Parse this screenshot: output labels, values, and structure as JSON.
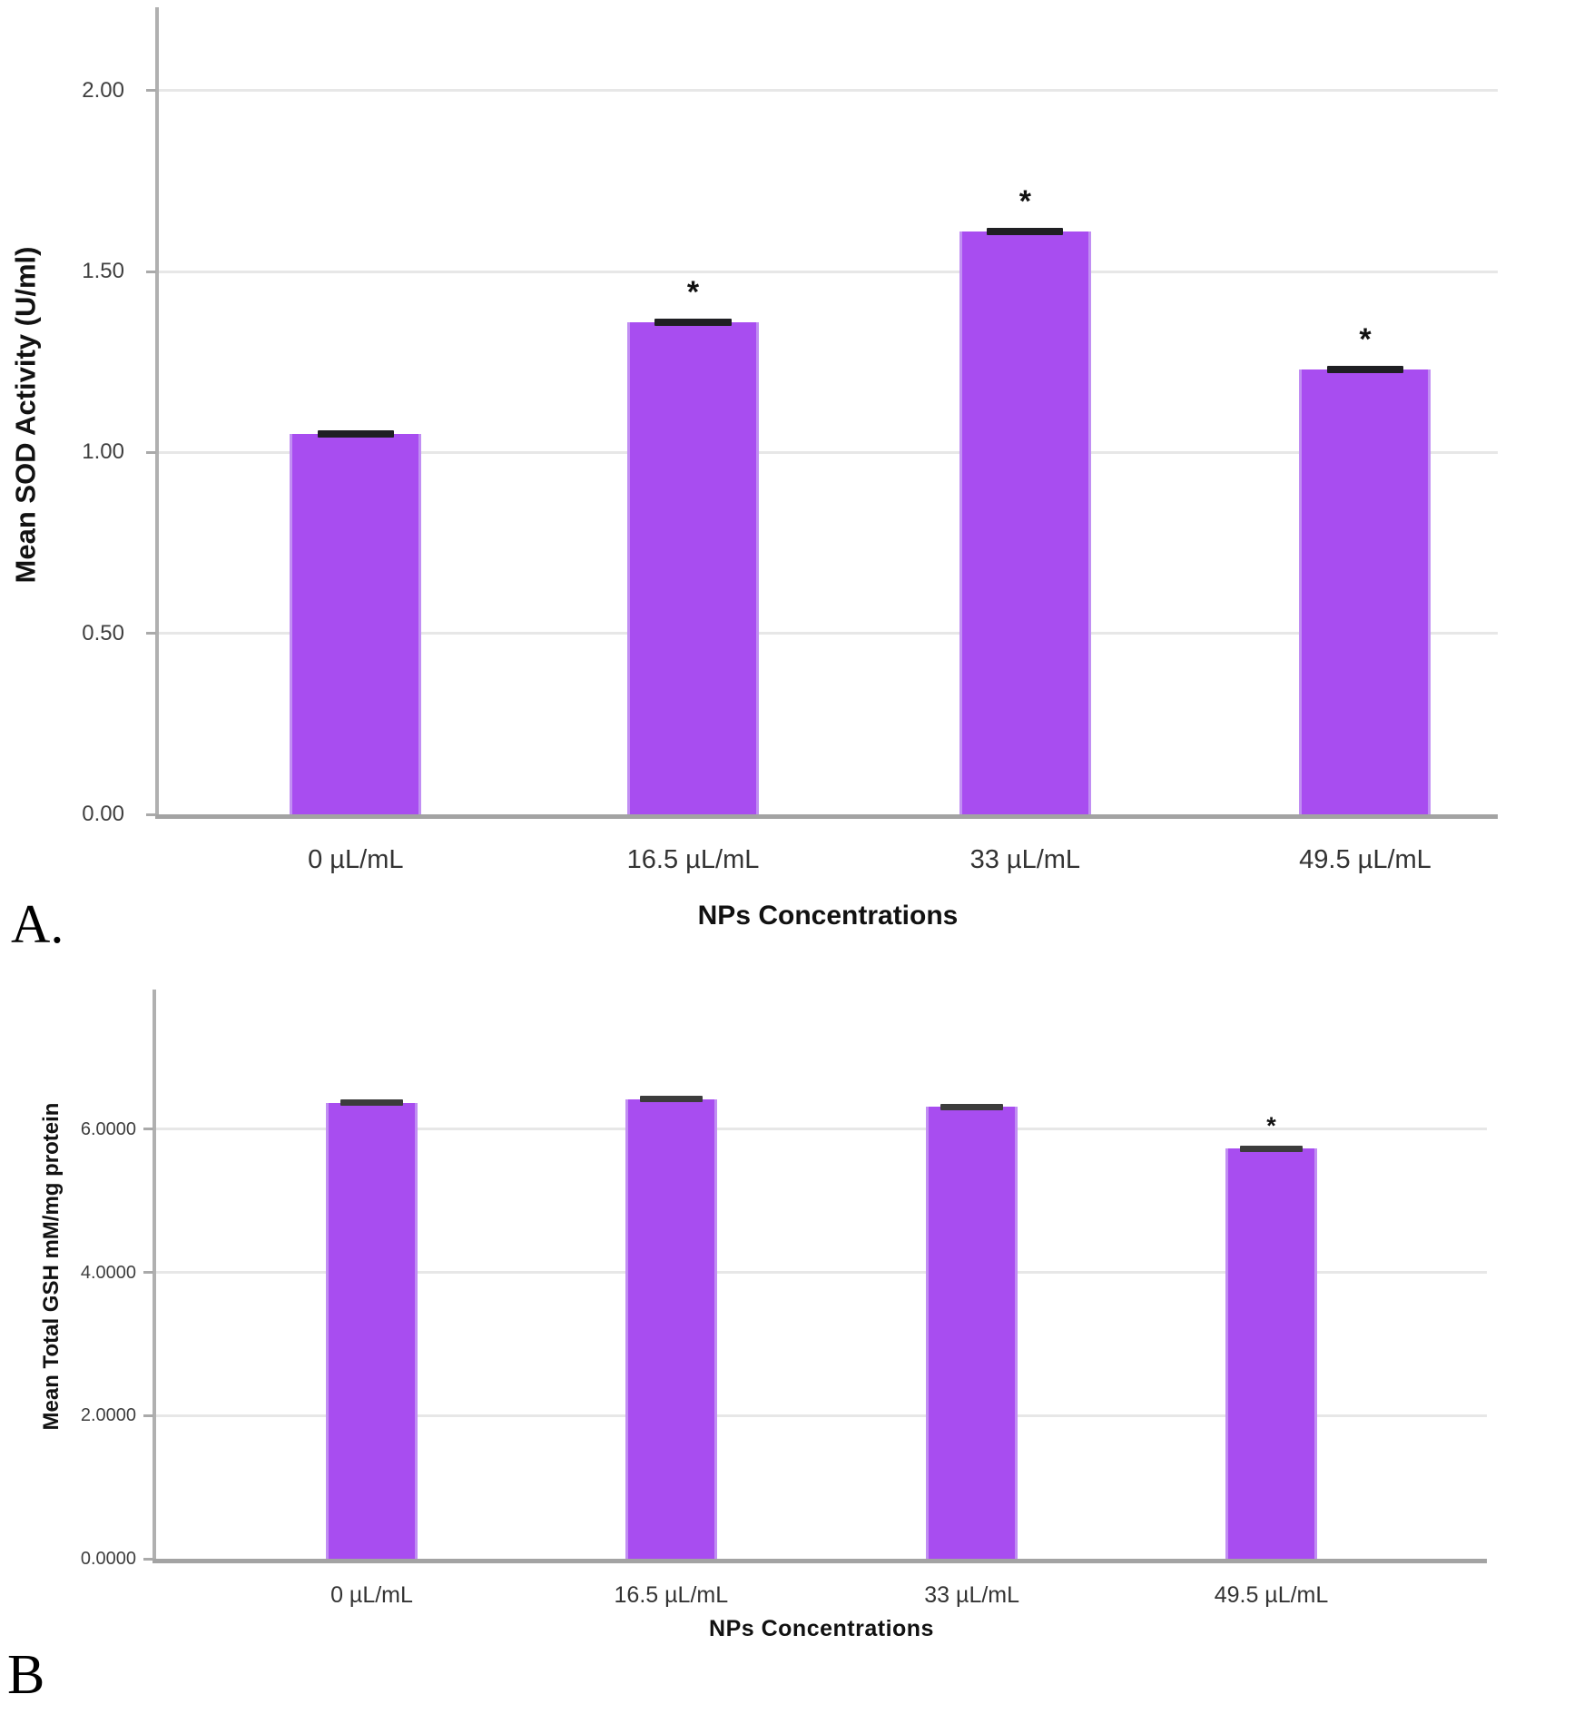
{
  "figure": {
    "background": "#ffffff"
  },
  "chart_data": [
    {
      "id": "A",
      "type": "bar",
      "panel_label": "A.",
      "categories": [
        "0 µL/mL",
        "16.5 µL/mL",
        "33 µL/mL",
        "49.5 µL/mL"
      ],
      "values": [
        1.05,
        1.36,
        1.61,
        1.23
      ],
      "error_caps": [
        0.01,
        0.01,
        0.01,
        0.01
      ],
      "significance": [
        "",
        "*",
        "*",
        "*"
      ],
      "xlabel": "NPs Concentrations",
      "ylabel": "Mean SOD Activity (U/ml)",
      "yticks": [
        {
          "label": "0.00",
          "value": 0
        },
        {
          "label": "0.50",
          "value": 0.5
        },
        {
          "label": "1.00",
          "value": 1.0
        },
        {
          "label": "1.50",
          "value": 1.5
        },
        {
          "label": "2.00",
          "value": 2.0
        }
      ],
      "ylim": [
        0,
        2.23
      ],
      "grid": true,
      "legend": null,
      "bar_color": "#a84df0",
      "bar_edge_color": "#c18ef3",
      "error_cap_color": "#1f1f23",
      "axis_color": "#a3a3a3",
      "gridline_color": "#e7e7e7"
    },
    {
      "id": "B",
      "type": "bar",
      "panel_label": "B",
      "categories": [
        "0 µL/mL",
        "16.5 µL/mL",
        "33 µL/mL",
        "49.5 µL/mL"
      ],
      "values": [
        6.37,
        6.42,
        6.31,
        5.73
      ],
      "error_caps": [
        0.03,
        0.03,
        0.03,
        0.03
      ],
      "significance": [
        "",
        "",
        "",
        "*"
      ],
      "xlabel": "NPs Concentrations",
      "ylabel": "Mean Total GSH mM/mg protein",
      "yticks": [
        {
          "label": "0.0000",
          "value": 0
        },
        {
          "label": "2.0000",
          "value": 2.0
        },
        {
          "label": "4.0000",
          "value": 4.0
        },
        {
          "label": "6.0000",
          "value": 6.0
        }
      ],
      "ylim": [
        0,
        7.95
      ],
      "grid": true,
      "legend": null,
      "bar_color": "#a84df0",
      "bar_edge_color": "#c18ef3",
      "error_cap_color": "#3c3c3c",
      "axis_color": "#a3a3a3",
      "gridline_color": "#e7e7e7"
    }
  ]
}
